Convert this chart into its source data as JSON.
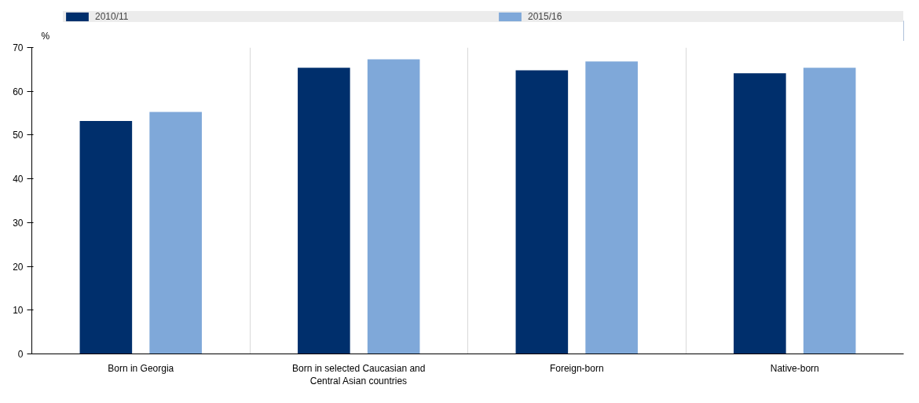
{
  "chart_data": {
    "type": "bar",
    "ylabel": "%",
    "categories": [
      "Born in Georgia",
      "Born in selected Caucasian and Central Asian countries",
      "Foreign-born",
      "Native-born"
    ],
    "series": [
      {
        "name": "2010/11",
        "color": "#002f6c",
        "values": [
          53.2,
          65.4,
          64.8,
          64.1
        ]
      },
      {
        "name": "2015/16",
        "color": "#7fa8d9",
        "values": [
          55.3,
          67.3,
          66.8,
          65.4
        ]
      }
    ],
    "ylim": [
      0,
      70
    ],
    "yticks": [
      0,
      10,
      20,
      30,
      40,
      50,
      60,
      70
    ],
    "grid": "x",
    "legend": "top"
  }
}
